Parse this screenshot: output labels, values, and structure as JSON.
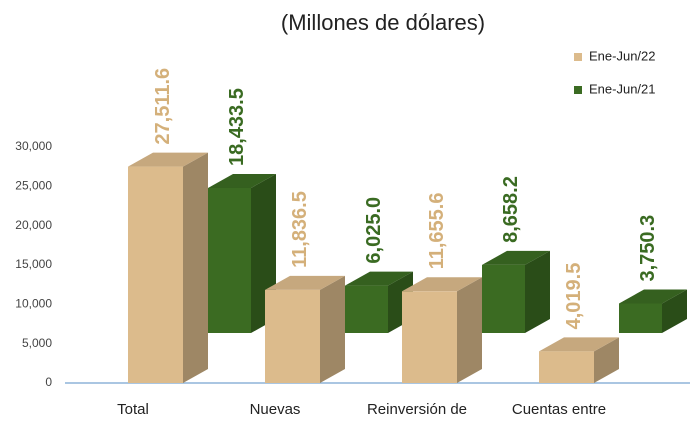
{
  "chart_data": {
    "type": "bar3d",
    "title": "(Millones de dólares)",
    "categories": [
      "Total",
      "Nuevas",
      "Reinversión de",
      "Cuentas entre"
    ],
    "series": [
      {
        "name": "Ene-Jun/22",
        "color": "#dcbb8c",
        "values": [
          27511.6,
          11836.5,
          11655.6,
          4019.5
        ],
        "value_labels": [
          "27,511.6",
          "11,836.5",
          "11,655.6",
          "4,019.5"
        ]
      },
      {
        "name": "Ene-Jun/21",
        "color": "#3b6b22",
        "values": [
          18433.5,
          6025.0,
          8658.2,
          3750.3
        ],
        "value_labels": [
          "18,433.5",
          "6,025.0",
          "8,658.2",
          "3,750.3"
        ]
      }
    ],
    "ylim": [
      0,
      30000
    ],
    "yticks": [
      0,
      {
        "value": 5000,
        "label": "5,000"
      },
      {
        "value": 10000,
        "label": "10,000"
      },
      {
        "value": 15000,
        "label": "15,000"
      },
      {
        "value": 20000,
        "label": "20,000"
      },
      {
        "value": 25000,
        "label": "25,000"
      },
      {
        "value": 30000,
        "label": "30,000"
      }
    ],
    "legend": "top-right"
  }
}
